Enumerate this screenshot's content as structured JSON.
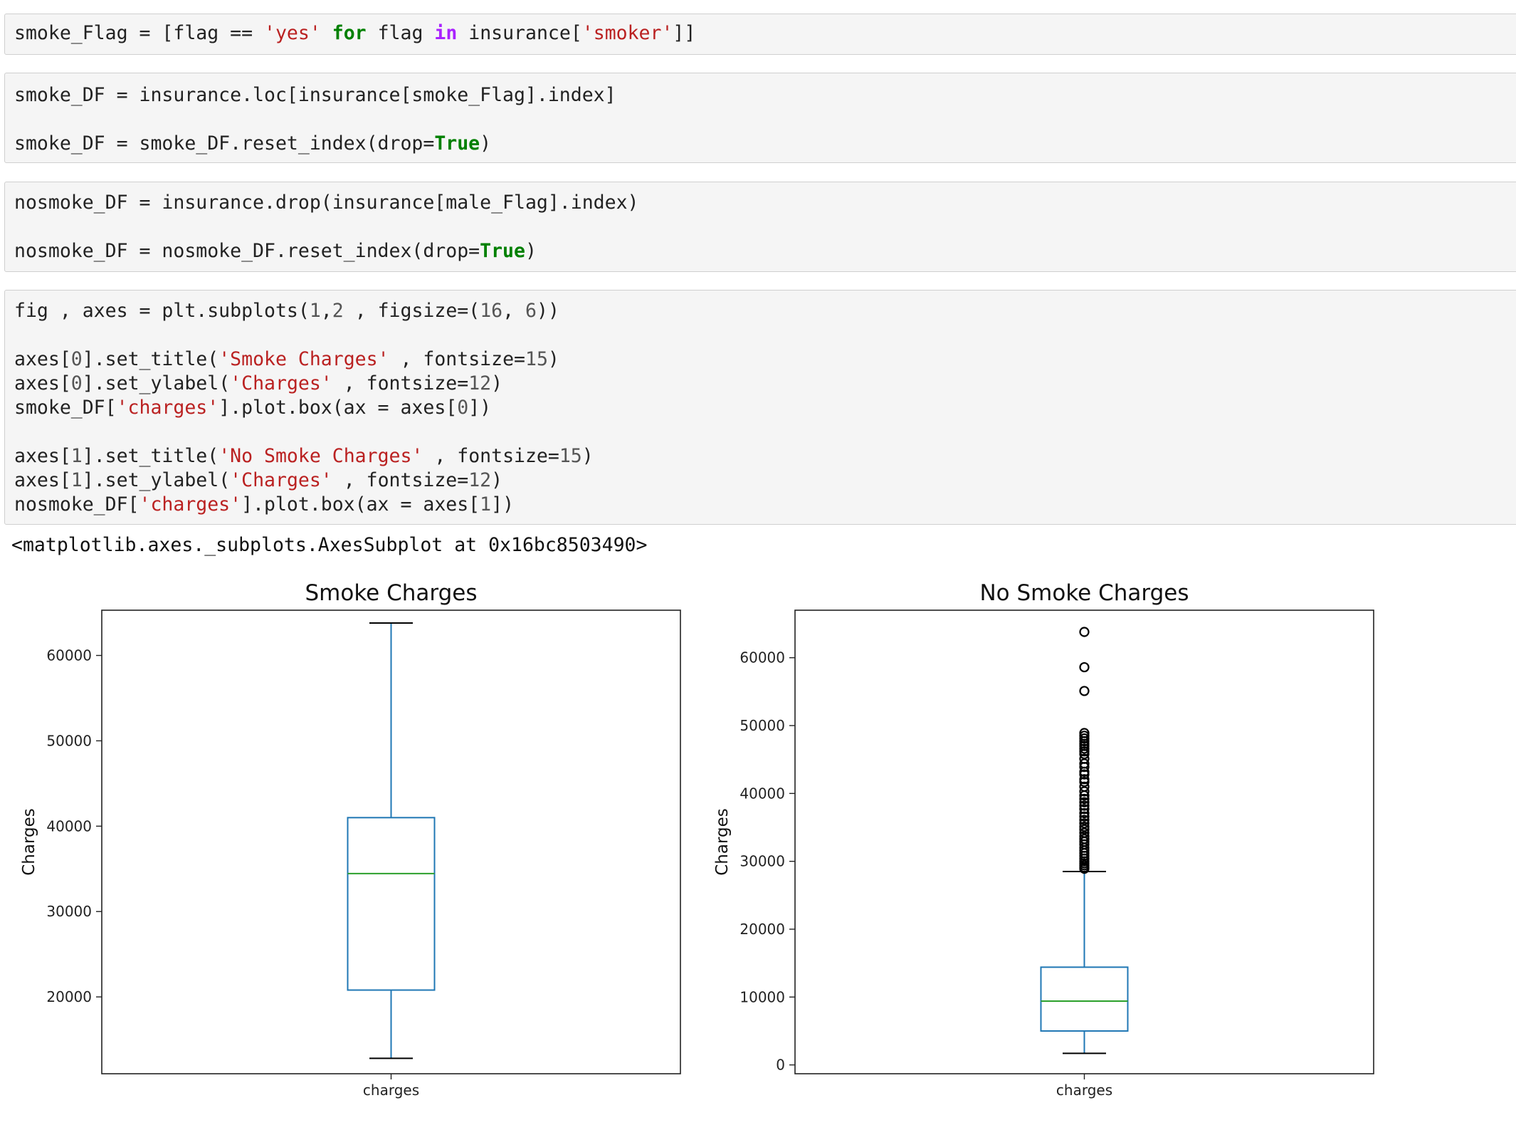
{
  "cells": [
    {
      "lines": [
        [
          [
            "",
            "smoke_Flag = [flag == "
          ],
          [
            "str",
            "'yes'"
          ],
          [
            "",
            " "
          ],
          [
            "kw",
            "for"
          ],
          [
            "",
            " flag "
          ],
          [
            "kwp",
            "in"
          ],
          [
            "",
            " insurance["
          ],
          [
            "str",
            "'smoker'"
          ],
          [
            "",
            "]]"
          ]
        ]
      ]
    },
    {
      "lines": [
        [
          [
            "",
            "smoke_DF = insurance.loc[insurance[smoke_Flag].index]"
          ]
        ],
        [],
        [
          [
            "",
            "smoke_DF = smoke_DF.reset_index(drop="
          ],
          [
            "kw",
            "True"
          ],
          [
            "",
            ")"
          ]
        ]
      ]
    },
    {
      "lines": [
        [
          [
            "",
            "nosmoke_DF = insurance.drop(insurance[male_Flag].index)"
          ]
        ],
        [],
        [
          [
            "",
            "nosmoke_DF = nosmoke_DF.reset_index(drop="
          ],
          [
            "kw",
            "True"
          ],
          [
            "",
            ")"
          ]
        ]
      ]
    },
    {
      "lines": [
        [
          [
            "",
            "fig , axes = plt.subplots("
          ],
          [
            "num",
            "1"
          ],
          [
            "",
            ","
          ],
          [
            "num",
            "2"
          ],
          [
            "",
            " , figsize=("
          ],
          [
            "num",
            "16"
          ],
          [
            "",
            ", "
          ],
          [
            "num",
            "6"
          ],
          [
            "",
            "))"
          ]
        ],
        [],
        [
          [
            "",
            "axes["
          ],
          [
            "num",
            "0"
          ],
          [
            "",
            "].set_title("
          ],
          [
            "str",
            "'Smoke Charges'"
          ],
          [
            "",
            " , fontsize="
          ],
          [
            "num",
            "15"
          ],
          [
            "",
            ")"
          ]
        ],
        [
          [
            "",
            "axes["
          ],
          [
            "num",
            "0"
          ],
          [
            "",
            "].set_ylabel("
          ],
          [
            "str",
            "'Charges'"
          ],
          [
            "",
            " , fontsize="
          ],
          [
            "num",
            "12"
          ],
          [
            "",
            ")"
          ]
        ],
        [
          [
            "",
            "smoke_DF["
          ],
          [
            "str",
            "'charges'"
          ],
          [
            "",
            "].plot.box(ax = axes["
          ],
          [
            "num",
            "0"
          ],
          [
            "",
            "])"
          ]
        ],
        [],
        [
          [
            "",
            "axes["
          ],
          [
            "num",
            "1"
          ],
          [
            "",
            "].set_title("
          ],
          [
            "str",
            "'No Smoke Charges'"
          ],
          [
            "",
            " , fontsize="
          ],
          [
            "num",
            "15"
          ],
          [
            "",
            ")"
          ]
        ],
        [
          [
            "",
            "axes["
          ],
          [
            "num",
            "1"
          ],
          [
            "",
            "].set_ylabel("
          ],
          [
            "str",
            "'Charges'"
          ],
          [
            "",
            " , fontsize="
          ],
          [
            "num",
            "12"
          ],
          [
            "",
            ")"
          ]
        ],
        [
          [
            "",
            "nosmoke_DF["
          ],
          [
            "str",
            "'charges'"
          ],
          [
            "",
            "].plot.box(ax = axes["
          ],
          [
            "num",
            "1"
          ],
          [
            "",
            "])"
          ]
        ]
      ]
    }
  ],
  "output_text": "<matplotlib.axes._subplots.AxesSubplot at 0x16bc8503490>",
  "colors": {
    "box": "#1f77b4",
    "median": "#2ca02c",
    "whisker_cap": "#000000"
  },
  "chart_data": [
    {
      "type": "box",
      "title": "Smoke Charges",
      "ylabel": "Charges",
      "categories": [
        "charges"
      ],
      "ylim": [
        11000,
        65300
      ],
      "yticks": [
        20000,
        30000,
        40000,
        50000,
        60000
      ],
      "box": {
        "whisker_low": 12800,
        "q1": 20800,
        "median": 34450,
        "q3": 41000,
        "whisker_high": 63800
      },
      "outliers": []
    },
    {
      "type": "box",
      "title": "No Smoke Charges",
      "ylabel": "Charges",
      "categories": [
        "charges"
      ],
      "ylim": [
        -1300,
        67000
      ],
      "yticks": [
        0,
        10000,
        20000,
        30000,
        40000,
        50000,
        60000
      ],
      "box": {
        "whisker_low": 1700,
        "q1": 5000,
        "median": 9400,
        "q3": 14400,
        "whisker_high": 28500
      },
      "outliers": [
        63800,
        58600,
        55100,
        48900,
        48500,
        48100,
        47700,
        47300,
        47000,
        46600,
        46200,
        45800,
        45100,
        44400,
        43900,
        43200,
        42800,
        42100,
        41700,
        41000,
        40300,
        39700,
        39200,
        38700,
        38200,
        37700,
        37100,
        36600,
        36100,
        35600,
        35100,
        34700,
        34200,
        33700,
        33300,
        32900,
        32500,
        32000,
        31600,
        31200,
        30800,
        30400,
        30000,
        29700,
        29400,
        29100,
        28900
      ]
    }
  ]
}
